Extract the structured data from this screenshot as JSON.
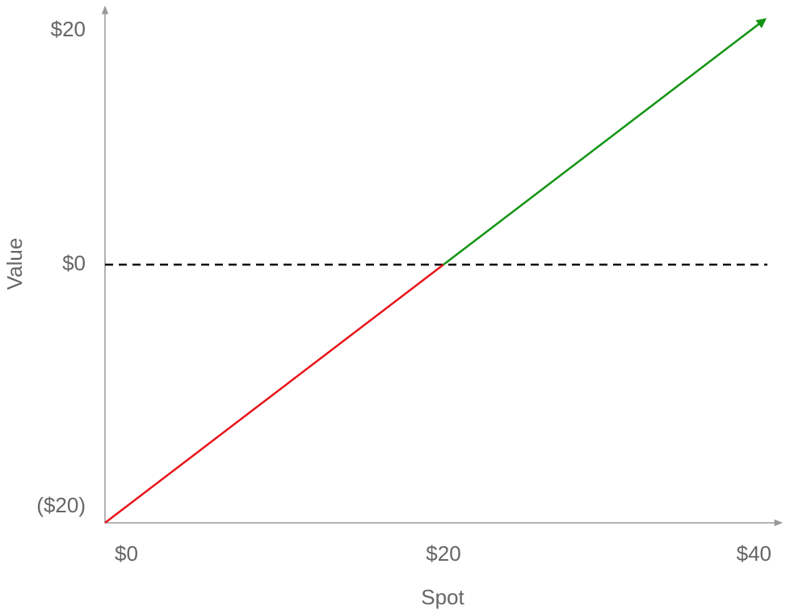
{
  "chart_data": {
    "type": "line",
    "x_label": "Spot",
    "y_label": "Value",
    "xlim": [
      0,
      40
    ],
    "ylim": [
      -20,
      20
    ],
    "xticks": [
      {
        "value": 0,
        "label": "$0"
      },
      {
        "value": 20,
        "label": "$20"
      },
      {
        "value": 40,
        "label": "$40"
      }
    ],
    "yticks": [
      {
        "value": -20,
        "label": "($20)"
      },
      {
        "value": 0,
        "label": "$0"
      },
      {
        "value": 20,
        "label": "$20"
      }
    ],
    "reference_line": {
      "value": 0,
      "style": "dashed",
      "color": "#000000"
    },
    "series": [
      {
        "color": "#e8141a",
        "x": [
          0,
          20
        ],
        "values": [
          -20,
          0
        ],
        "arrow": false
      },
      {
        "color": "#129412",
        "x": [
          20,
          39
        ],
        "values": [
          0,
          19
        ],
        "arrow": true
      }
    ]
  }
}
